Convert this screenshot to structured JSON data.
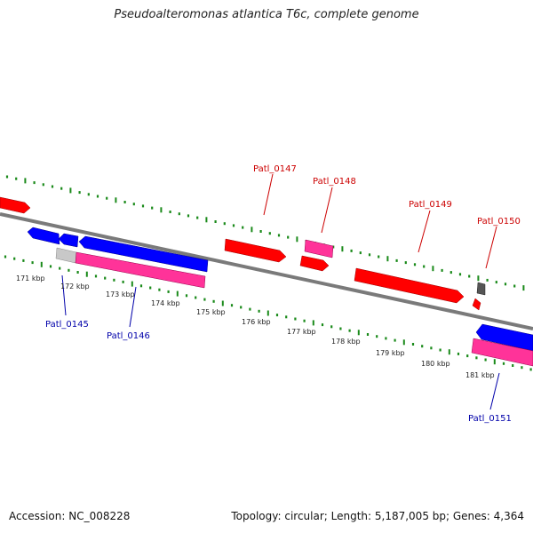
{
  "title": "Pseudoalteromonas atlantica T6c, complete genome",
  "footer": {
    "accession": "Accession: NC_008228",
    "summary": "Topology: circular; Length: 5,187,005 bp; Genes: 4,364"
  },
  "colors": {
    "forward_gene": "#ff0000",
    "reverse_gene": "#0000ff",
    "rna_like": "#ff3399",
    "pseudo": "#c8c8c8",
    "other": "#555555",
    "backbone": "#808080",
    "tick": "#1a8a1a",
    "label_forward": "#cc0000",
    "label_reverse": "#0000aa"
  },
  "axis": {
    "ticks": [
      "171 kbp",
      "172 kbp",
      "173 kbp",
      "174 kbp",
      "175 kbp",
      "176 kbp",
      "177 kbp",
      "178 kbp",
      "179 kbp",
      "180 kbp",
      "181 kbp"
    ]
  },
  "genes": [
    {
      "label": "Patl_0145",
      "strand": "reverse"
    },
    {
      "label": "Patl_0146",
      "strand": "reverse"
    },
    {
      "label": "Patl_0147",
      "strand": "forward"
    },
    {
      "label": "Patl_0148",
      "strand": "forward"
    },
    {
      "label": "Patl_0149",
      "strand": "forward"
    },
    {
      "label": "Patl_0150",
      "strand": "forward"
    },
    {
      "label": "Patl_0151",
      "strand": "reverse"
    }
  ]
}
